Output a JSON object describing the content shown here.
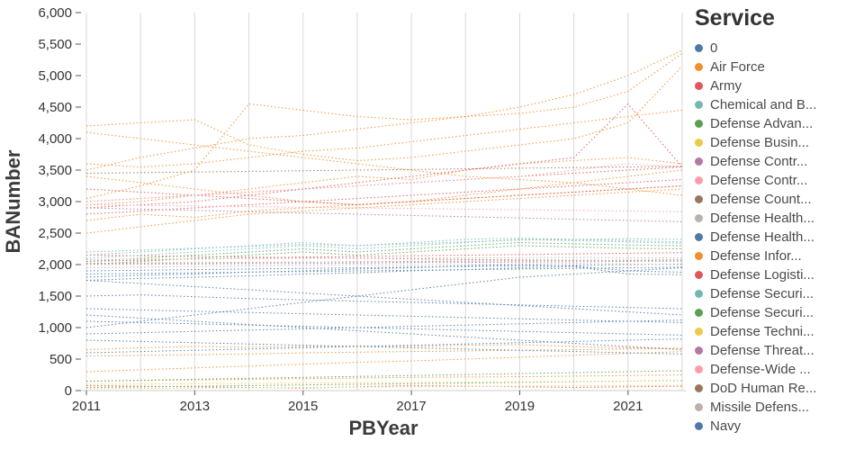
{
  "chart_data": {
    "type": "line",
    "title": "",
    "xlabel": "PBYear",
    "ylabel": "BANumber",
    "legend_title": "Service",
    "legend_position": "right",
    "grid": "vertical",
    "line_style": "dotted",
    "x_range": [
      2011,
      2022
    ],
    "ylim": [
      0,
      6000
    ],
    "x_ticks": [
      2011,
      2013,
      2015,
      2017,
      2019,
      2021
    ],
    "y_ticks": [
      0,
      500,
      1000,
      1500,
      2000,
      2500,
      3000,
      3500,
      4000,
      4500,
      5000,
      5500,
      6000
    ],
    "x": [
      2011,
      2012,
      2013,
      2014,
      2015,
      2016,
      2017,
      2018,
      2019,
      2020,
      2021,
      2022
    ],
    "legend": [
      {
        "label": "0",
        "color": "#4e79a7"
      },
      {
        "label": "Air Force",
        "color": "#f28e2b"
      },
      {
        "label": "Army",
        "color": "#e15759"
      },
      {
        "label": "Chemical and B...",
        "color": "#76b7b2"
      },
      {
        "label": "Defense Advan...",
        "color": "#59a14f"
      },
      {
        "label": "Defense Busin...",
        "color": "#edc948"
      },
      {
        "label": "Defense Contr...",
        "color": "#b07aa1"
      },
      {
        "label": "Defense Contr...",
        "color": "#ff9da7"
      },
      {
        "label": "Defense Count...",
        "color": "#9c755f"
      },
      {
        "label": "Defense Health...",
        "color": "#bab0ac"
      },
      {
        "label": "Defense Health...",
        "color": "#4e79a7"
      },
      {
        "label": "Defense Infor...",
        "color": "#f28e2b"
      },
      {
        "label": "Defense Logisti...",
        "color": "#e15759"
      },
      {
        "label": "Defense Securi...",
        "color": "#76b7b2"
      },
      {
        "label": "Defense Securi...",
        "color": "#59a14f"
      },
      {
        "label": "Defense Techni...",
        "color": "#edc948"
      },
      {
        "label": "Defense Threat...",
        "color": "#b07aa1"
      },
      {
        "label": "Defense-Wide ...",
        "color": "#ff9da7"
      },
      {
        "label": "DoD Human Re...",
        "color": "#9c755f"
      },
      {
        "label": "Missile Defens...",
        "color": "#bab0ac"
      },
      {
        "label": "Navy",
        "color": "#4e79a7"
      }
    ],
    "series": [
      {
        "name": "Air Force",
        "color": "#f28e2b",
        "values": [
          3500,
          3700,
          3850,
          4000,
          4050,
          4150,
          4250,
          4350,
          4500,
          4700,
          5000,
          5400
        ]
      },
      {
        "name": "Air Force",
        "color": "#f28e2b",
        "values": [
          3050,
          3250,
          3500,
          4550,
          4450,
          4350,
          4300,
          4350,
          4400,
          4500,
          4750,
          5350
        ]
      },
      {
        "name": "Air Force",
        "color": "#f28e2b",
        "values": [
          4200,
          4250,
          4300,
          3900,
          3750,
          3650,
          3700,
          3800,
          3900,
          4000,
          4250,
          5150
        ]
      },
      {
        "name": "Air Force",
        "color": "#f28e2b",
        "values": [
          2950,
          3000,
          3100,
          3200,
          3300,
          3400,
          3350,
          3500,
          3600,
          3650,
          3700,
          3600
        ]
      },
      {
        "name": "Air Force",
        "color": "#f28e2b",
        "values": [
          3400,
          3300,
          3200,
          3100,
          3000,
          2950,
          3000,
          3100,
          3200,
          3300,
          3400,
          3500
        ]
      },
      {
        "name": "Air Force",
        "color": "#f28e2b",
        "values": [
          2700,
          2800,
          2750,
          2850,
          2900,
          2950,
          3000,
          3050,
          3100,
          3150,
          3200,
          3250
        ]
      },
      {
        "name": "Air Force",
        "color": "#f28e2b",
        "values": [
          4100,
          4000,
          3900,
          3800,
          3700,
          3600,
          3500,
          3400,
          3350,
          3300,
          3200,
          3100
        ]
      },
      {
        "name": "Air Force",
        "color": "#f28e2b",
        "values": [
          3600,
          3550,
          3600,
          3700,
          3800,
          3850,
          3950,
          4050,
          4150,
          4250,
          4350,
          4450
        ]
      },
      {
        "name": "Air Force",
        "color": "#f28e2b",
        "values": [
          2500,
          2600,
          2700,
          2800,
          2850,
          2900,
          2950,
          3000,
          3050,
          3100,
          3150,
          3200
        ]
      },
      {
        "name": "Defense Infor...",
        "color": "#f28e2b",
        "values": [
          650,
          680,
          700,
          690,
          700,
          710,
          700,
          720,
          730,
          700,
          680,
          670
        ]
      },
      {
        "name": "Defense Infor...",
        "color": "#f28e2b",
        "values": [
          550,
          560,
          570,
          580,
          600,
          610,
          620,
          630,
          640,
          650,
          660,
          670
        ]
      },
      {
        "name": "Defense Infor...",
        "color": "#f28e2b",
        "values": [
          300,
          330,
          360,
          390,
          420,
          450,
          470,
          500,
          530,
          560,
          590,
          620
        ]
      },
      {
        "name": "Defense Infor...",
        "color": "#f28e2b",
        "values": [
          150,
          160,
          170,
          180,
          190,
          200,
          210,
          215,
          220,
          230,
          240,
          250
        ]
      },
      {
        "name": "Army",
        "color": "#e15759",
        "values": [
          3000,
          3050,
          3100,
          3150,
          3200,
          3250,
          3300,
          3350,
          3400,
          3450,
          3500,
          3550
        ]
      },
      {
        "name": "Army",
        "color": "#e15759",
        "values": [
          2800,
          2850,
          2900,
          2950,
          3000,
          3050,
          3100,
          3150,
          3200,
          3250,
          3300,
          3350
        ]
      },
      {
        "name": "Army",
        "color": "#e15759",
        "values": [
          3200,
          3150,
          3100,
          3050,
          3000,
          2950,
          3000,
          3050,
          3100,
          3150,
          3200,
          3250
        ]
      },
      {
        "name": "Army",
        "color": "#e15759",
        "values": [
          2900,
          2950,
          3000,
          3100,
          3200,
          3300,
          3400,
          3500,
          3600,
          3700,
          4550,
          3550
        ]
      },
      {
        "name": "Defense Logisti...",
        "color": "#e15759",
        "values": [
          2050,
          2070,
          2090,
          2100,
          2120,
          2130,
          2140,
          2150,
          2160,
          2170,
          2180,
          2190
        ]
      },
      {
        "name": "Defense Logisti...",
        "color": "#e15759",
        "values": [
          2150,
          2140,
          2130,
          2120,
          2110,
          2100,
          2090,
          2080,
          2075,
          2070,
          2060,
          2050
        ]
      },
      {
        "name": "Defense Logisti...",
        "color": "#e15759",
        "values": [
          80,
          70,
          60,
          50,
          40,
          60,
          80,
          70,
          60,
          50,
          60,
          70
        ]
      },
      {
        "name": "Navy",
        "color": "#4e79a7",
        "values": [
          1750,
          1780,
          1800,
          1820,
          1850,
          1870,
          1900,
          1920,
          1950,
          1970,
          1850,
          1840
        ]
      },
      {
        "name": "Navy",
        "color": "#4e79a7",
        "values": [
          1800,
          1830,
          1850,
          1880,
          1900,
          1930,
          1950,
          1980,
          2000,
          1980,
          1900,
          1880
        ]
      },
      {
        "name": "Navy",
        "color": "#4e79a7",
        "values": [
          1300,
          1280,
          1260,
          1240,
          1220,
          1200,
          1180,
          1160,
          1140,
          1120,
          1100,
          1080
        ]
      },
      {
        "name": "Navy",
        "color": "#4e79a7",
        "values": [
          1200,
          1150,
          1100,
          1050,
          1000,
          950,
          900,
          850,
          800,
          750,
          700,
          650
        ]
      },
      {
        "name": "Navy",
        "color": "#4e79a7",
        "values": [
          900,
          920,
          940,
          960,
          980,
          1000,
          1020,
          1040,
          1060,
          1080,
          1100,
          1120
        ]
      },
      {
        "name": "0",
        "color": "#4e79a7",
        "values": [
          800,
          780,
          760,
          740,
          720,
          700,
          680,
          660,
          640,
          620,
          600,
          580
        ]
      },
      {
        "name": "0",
        "color": "#4e79a7",
        "values": [
          1500,
          1520,
          1490,
          1460,
          1440,
          1420,
          1400,
          1380,
          1360,
          1340,
          1320,
          1300
        ]
      },
      {
        "name": "Navy",
        "color": "#4e79a7",
        "values": [
          1750,
          1700,
          1650,
          1600,
          1550,
          1500,
          1450,
          1400,
          1350,
          1300,
          1250,
          1200
        ]
      },
      {
        "name": "Navy",
        "color": "#4e79a7",
        "values": [
          1000,
          1100,
          1200,
          1300,
          1400,
          1500,
          1600,
          1700,
          1800,
          1850,
          1900,
          1950
        ]
      },
      {
        "name": "Defense Health...",
        "color": "#4e79a7",
        "values": [
          1850,
          1860,
          1870,
          1880,
          1890,
          1900,
          1910,
          1920,
          1930,
          1940,
          1950,
          1960
        ]
      },
      {
        "name": "Defense Health...",
        "color": "#4e79a7",
        "values": [
          1900,
          1910,
          1920,
          1930,
          1940,
          1950,
          1960,
          1970,
          1980,
          1990,
          2000,
          2010
        ]
      },
      {
        "name": "Navy",
        "color": "#4e79a7",
        "values": [
          1100,
          1080,
          1060,
          1040,
          1020,
          1000,
          980,
          960,
          940,
          920,
          900,
          880
        ]
      },
      {
        "name": "Navy",
        "color": "#4e79a7",
        "values": [
          600,
          620,
          640,
          660,
          680,
          700,
          720,
          740,
          760,
          780,
          800,
          820
        ]
      },
      {
        "name": "Chemical and B...",
        "color": "#76b7b2",
        "values": [
          2100,
          2150,
          2200,
          2250,
          2300,
          2250,
          2300,
          2350,
          2400,
          2380,
          2360,
          2340
        ]
      },
      {
        "name": "Defense Securi...",
        "color": "#76b7b2",
        "values": [
          2150,
          2200,
          2250,
          2300,
          2350,
          2300,
          2350,
          2400,
          2420,
          2400,
          2380,
          2360
        ]
      },
      {
        "name": "Defense Securi...",
        "color": "#76b7b2",
        "values": [
          2200,
          2230,
          2260,
          2290,
          2320,
          2300,
          2330,
          2360,
          2390,
          2400,
          2410,
          2400
        ]
      },
      {
        "name": "Defense Advan...",
        "color": "#59a14f",
        "values": [
          2050,
          2100,
          2150,
          2200,
          2250,
          2200,
          2250,
          2300,
          2350,
          2330,
          2310,
          2300
        ]
      },
      {
        "name": "Defense Securi...",
        "color": "#59a14f",
        "values": [
          2000,
          2050,
          2100,
          2150,
          2200,
          2150,
          2200,
          2250,
          2300,
          2280,
          2260,
          2250
        ]
      },
      {
        "name": "Defense Advan...",
        "color": "#59a14f",
        "values": [
          50,
          60,
          70,
          80,
          90,
          100,
          110,
          120,
          130,
          140,
          150,
          160
        ]
      },
      {
        "name": "Defense Advan...",
        "color": "#59a14f",
        "values": [
          150,
          165,
          180,
          195,
          210,
          225,
          240,
          255,
          270,
          285,
          300,
          315
        ]
      },
      {
        "name": "Defense Busin...",
        "color": "#edc948",
        "values": [
          30,
          35,
          40,
          45,
          50,
          55,
          60,
          65,
          70,
          75,
          80,
          85
        ]
      },
      {
        "name": "Defense Techni...",
        "color": "#edc948",
        "values": [
          100,
          105,
          110,
          115,
          120,
          125,
          130,
          135,
          140,
          145,
          150,
          155
        ]
      },
      {
        "name": "Defense Threat...",
        "color": "#b07aa1",
        "values": [
          2900,
          2880,
          2860,
          2840,
          2820,
          2800,
          2780,
          2760,
          2740,
          2720,
          2700,
          2680
        ]
      },
      {
        "name": "Defense Contr...",
        "color": "#b07aa1",
        "values": [
          2000,
          2005,
          2010,
          2015,
          2020,
          2025,
          2030,
          2035,
          2040,
          2045,
          2050,
          2055
        ]
      },
      {
        "name": "Defense-Wide ...",
        "color": "#ff9da7",
        "values": [
          2950,
          2940,
          2930,
          2920,
          2910,
          2900,
          2890,
          2880,
          2870,
          2860,
          2850,
          2840
        ]
      },
      {
        "name": "Defense-Wide ...",
        "color": "#ff9da7",
        "values": [
          3000,
          3050,
          3100,
          3150,
          3200,
          3250,
          3300,
          3350,
          3400,
          3500,
          3600,
          3550
        ]
      },
      {
        "name": "Defense Count...",
        "color": "#9c755f",
        "values": [
          2020,
          2025,
          2030,
          2035,
          2040,
          2045,
          2050,
          2055,
          2060,
          2065,
          2070,
          2075
        ]
      },
      {
        "name": "DoD Human Re...",
        "color": "#9c755f",
        "values": [
          3450,
          3460,
          3470,
          3480,
          3490,
          3500,
          3510,
          3520,
          3530,
          3540,
          3550,
          3560
        ]
      },
      {
        "name": "Defense Health...",
        "color": "#bab0ac",
        "values": [
          2000,
          2010,
          2020,
          2030,
          2040,
          2050,
          2040,
          2050,
          2060,
          2070,
          2060,
          2050
        ]
      },
      {
        "name": "Missile Defens...",
        "color": "#bab0ac",
        "values": [
          1950,
          1960,
          1970,
          1980,
          1990,
          2000,
          1990,
          2000,
          2010,
          2020,
          2010,
          2000
        ]
      },
      {
        "name": "Missile Defens...",
        "color": "#bab0ac",
        "values": [
          2080,
          2085,
          2090,
          2095,
          2100,
          2105,
          2100,
          2105,
          2110,
          2115,
          2110,
          2105
        ]
      }
    ]
  }
}
